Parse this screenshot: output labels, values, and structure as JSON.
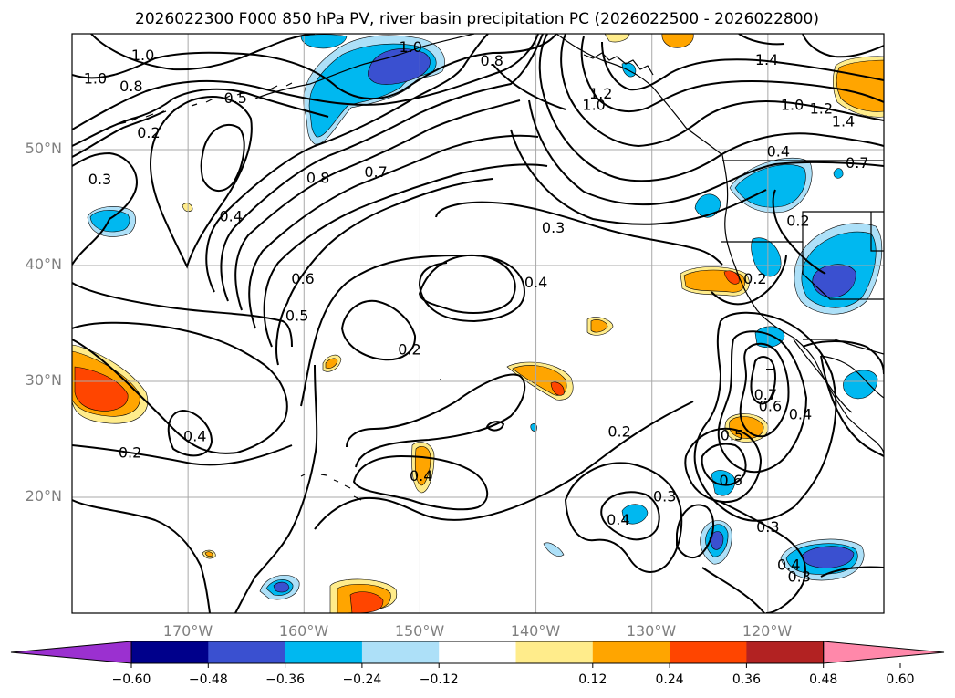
{
  "map": {
    "title": "2026022300 F000 850 hPa PV, river basin precipitation PC (2026022500 - 2026022800)",
    "projection": "cylindrical",
    "lon_range": [
      -180,
      -110
    ],
    "lat_range": [
      10,
      60
    ],
    "gridlines": true,
    "lon_ticks": [
      {
        "lon": -170,
        "label": "170°W"
      },
      {
        "lon": -160,
        "label": "160°W"
      },
      {
        "lon": -150,
        "label": "150°W"
      },
      {
        "lon": -140,
        "label": "140°W"
      },
      {
        "lon": -130,
        "label": "130°W"
      },
      {
        "lon": -120,
        "label": "120°W"
      }
    ],
    "lat_ticks": [
      {
        "lat": 50,
        "label": "50°N"
      },
      {
        "lat": 40,
        "label": "40°N"
      },
      {
        "lat": 30,
        "label": "30°N"
      },
      {
        "lat": 20,
        "label": "20°N"
      }
    ],
    "contour_labels": [
      {
        "text": "1.0",
        "lon": -178,
        "lat": 56.2
      },
      {
        "text": "1.0",
        "lon": -173.9,
        "lat": 58.2
      },
      {
        "text": "0.8",
        "lon": -174.9,
        "lat": 55.5
      },
      {
        "text": "0.5",
        "lon": -165.9,
        "lat": 54.5
      },
      {
        "text": "0.2",
        "lon": -173.4,
        "lat": 51.5
      },
      {
        "text": "0.3",
        "lon": -177.6,
        "lat": 47.5
      },
      {
        "text": "0.4",
        "lon": -166.3,
        "lat": 44.3
      },
      {
        "text": "0.8",
        "lon": -158.8,
        "lat": 47.6
      },
      {
        "text": "0.7",
        "lon": -153.8,
        "lat": 48.1
      },
      {
        "text": "0.6",
        "lon": -160.1,
        "lat": 38.9
      },
      {
        "text": "0.5",
        "lon": -160.6,
        "lat": 35.7
      },
      {
        "text": "1.0",
        "lon": -150.8,
        "lat": 58.9
      },
      {
        "text": "0.8",
        "lon": -143.8,
        "lat": 57.7
      },
      {
        "text": "0.4",
        "lon": -140,
        "lat": 38.6
      },
      {
        "text": "0.2",
        "lon": -150.9,
        "lat": 32.8
      },
      {
        "text": "0.3",
        "lon": -138.5,
        "lat": 43.3
      },
      {
        "text": "1.2",
        "lon": -134.4,
        "lat": 54.9
      },
      {
        "text": "1.0",
        "lon": -135,
        "lat": 53.9
      },
      {
        "text": "1.4",
        "lon": -120.1,
        "lat": 57.8
      },
      {
        "text": "1.0",
        "lon": -117.9,
        "lat": 53.9
      },
      {
        "text": "1.2",
        "lon": -115.4,
        "lat": 53.6
      },
      {
        "text": "1.4",
        "lon": -113.5,
        "lat": 52.5
      },
      {
        "text": "0.7",
        "lon": -112.3,
        "lat": 48.9
      },
      {
        "text": "0.4",
        "lon": -119.1,
        "lat": 49.9
      },
      {
        "text": "0.2",
        "lon": -117.4,
        "lat": 43.9
      },
      {
        "text": "0.2",
        "lon": -121.1,
        "lat": 38.9
      },
      {
        "text": "0.7",
        "lon": -120.2,
        "lat": 28.9
      },
      {
        "text": "0.6",
        "lon": -119.8,
        "lat": 27.9
      },
      {
        "text": "0.4",
        "lon": -117.2,
        "lat": 27.2
      },
      {
        "text": "0.5",
        "lon": -123.1,
        "lat": 25.4
      },
      {
        "text": "0.6",
        "lon": -123.2,
        "lat": 21.5
      },
      {
        "text": "0.3",
        "lon": -120,
        "lat": 17.5
      },
      {
        "text": "0.3",
        "lon": -128.9,
        "lat": 20.1
      },
      {
        "text": "0.2",
        "lon": -132.8,
        "lat": 25.7
      },
      {
        "text": "0.4",
        "lon": -132.9,
        "lat": 18.1
      },
      {
        "text": "0.4",
        "lon": -169.4,
        "lat": 25.3
      },
      {
        "text": "0.2",
        "lon": -175,
        "lat": 23.9
      },
      {
        "text": "0.4",
        "lon": -149.9,
        "lat": 21.9
      },
      {
        "text": "0.3",
        "lon": -117.3,
        "lat": 13.2
      },
      {
        "text": "0.4",
        "lon": -118.2,
        "lat": 14.2
      }
    ]
  },
  "colorbar": {
    "ticks": [
      "−0.60",
      "−0.48",
      "−0.36",
      "−0.24",
      "−0.12",
      "0.12",
      "0.24",
      "0.36",
      "0.48",
      "0.60"
    ],
    "colors": {
      "under": "#9b30d0",
      "bins": [
        "#00008b",
        "#3a50d0",
        "#00b8f0",
        "#ade0f8",
        "#ffffff",
        "#ffec8b",
        "#ffa500",
        "#ff4500",
        "#b22222"
      ],
      "over": "#ff88aa"
    }
  },
  "colors": {
    "contour": "#000000",
    "grid": "#a9a9a9",
    "coast": "#000000"
  }
}
